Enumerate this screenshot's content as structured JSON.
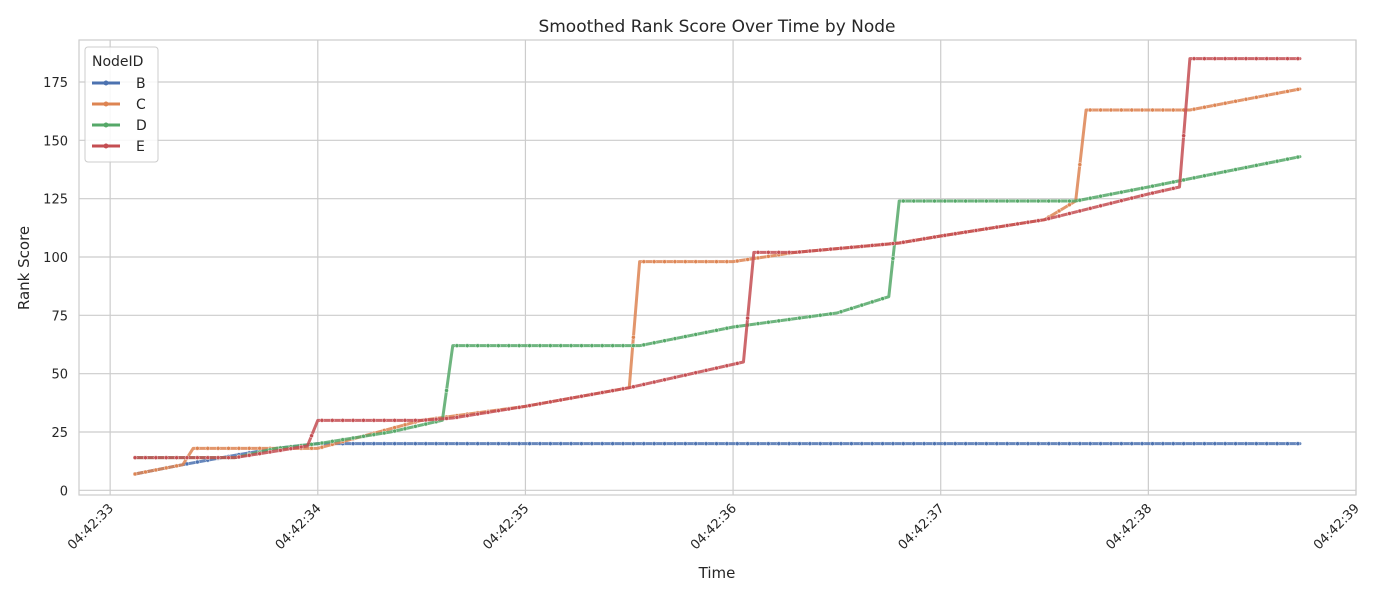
{
  "chart_data": {
    "type": "line",
    "title": "Smoothed Rank Score Over Time by Node",
    "xlabel": "Time",
    "ylabel": "Rank Score",
    "x_unit": "seconds past 04:42:33",
    "xlim": [
      -0.15,
      6.0
    ],
    "ylim": [
      -2,
      193
    ],
    "x_ticks": [
      0,
      1,
      2,
      3,
      4,
      5,
      6
    ],
    "x_tick_labels": [
      "04:42:33",
      "04:42:34",
      "04:42:35",
      "04:42:36",
      "04:42:37",
      "04:42:38",
      "04:42:39"
    ],
    "y_ticks": [
      0,
      25,
      50,
      75,
      100,
      125,
      150,
      175
    ],
    "y_tick_labels": [
      "0",
      "25",
      "50",
      "75",
      "100",
      "125",
      "150",
      "175"
    ],
    "grid": true,
    "legend": {
      "title": "NodeID",
      "position": "top-left"
    },
    "series": [
      {
        "name": "B",
        "color": "#4c72b0",
        "points": [
          [
            0.12,
            7
          ],
          [
            0.35,
            11
          ],
          [
            0.6,
            15
          ],
          [
            0.8,
            18
          ],
          [
            1.0,
            20
          ],
          [
            1.5,
            20
          ],
          [
            2.0,
            20
          ],
          [
            3.0,
            20
          ],
          [
            4.0,
            20
          ],
          [
            5.0,
            20
          ],
          [
            5.73,
            20
          ]
        ]
      },
      {
        "name": "C",
        "color": "#dd8452",
        "points": [
          [
            0.12,
            7
          ],
          [
            0.35,
            11
          ],
          [
            0.4,
            18
          ],
          [
            1.0,
            18
          ],
          [
            1.5,
            30
          ],
          [
            2.0,
            36
          ],
          [
            2.5,
            44
          ],
          [
            2.55,
            98
          ],
          [
            3.0,
            98
          ],
          [
            3.3,
            102
          ],
          [
            3.8,
            106
          ],
          [
            4.0,
            109
          ],
          [
            4.5,
            116
          ],
          [
            4.65,
            124
          ],
          [
            4.7,
            163
          ],
          [
            5.0,
            163
          ],
          [
            5.2,
            163
          ],
          [
            5.73,
            172
          ]
        ]
      },
      {
        "name": "D",
        "color": "#55a868",
        "points": [
          [
            0.12,
            14
          ],
          [
            0.6,
            14
          ],
          [
            0.8,
            18
          ],
          [
            1.0,
            20
          ],
          [
            1.35,
            25
          ],
          [
            1.6,
            30
          ],
          [
            1.65,
            62
          ],
          [
            2.0,
            62
          ],
          [
            2.55,
            62
          ],
          [
            3.0,
            70
          ],
          [
            3.5,
            76
          ],
          [
            3.75,
            83
          ],
          [
            3.8,
            124
          ],
          [
            4.0,
            124
          ],
          [
            4.5,
            124
          ],
          [
            4.65,
            124
          ],
          [
            5.0,
            130
          ],
          [
            5.73,
            143
          ]
        ]
      },
      {
        "name": "E",
        "color": "#c44e52",
        "points": [
          [
            0.12,
            14
          ],
          [
            0.6,
            14
          ],
          [
            0.95,
            19
          ],
          [
            1.0,
            30
          ],
          [
            1.2,
            30
          ],
          [
            1.5,
            30
          ],
          [
            1.65,
            31
          ],
          [
            2.0,
            36
          ],
          [
            2.5,
            44
          ],
          [
            3.05,
            55
          ],
          [
            3.1,
            102
          ],
          [
            3.3,
            102
          ],
          [
            3.8,
            106
          ],
          [
            4.0,
            109
          ],
          [
            4.5,
            116
          ],
          [
            5.0,
            127
          ],
          [
            5.15,
            130
          ],
          [
            5.2,
            185
          ],
          [
            5.73,
            185
          ]
        ]
      }
    ]
  }
}
